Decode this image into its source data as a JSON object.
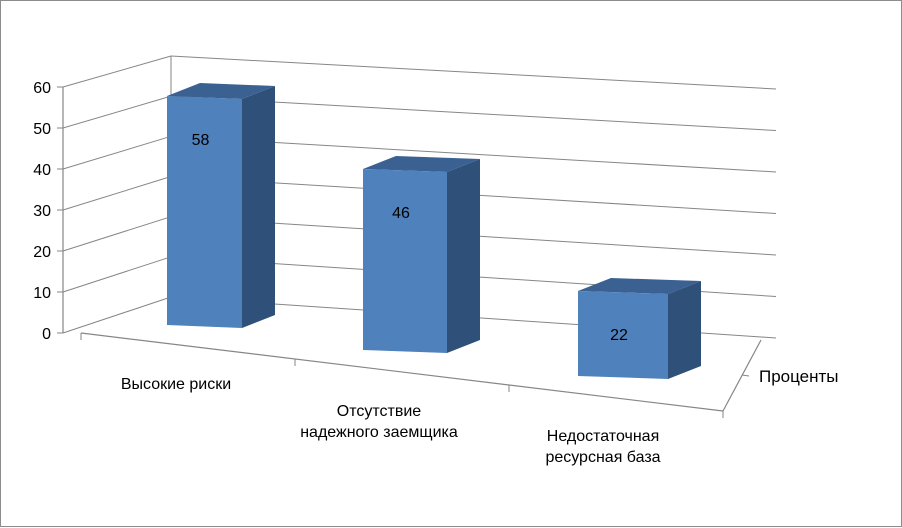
{
  "chart_data": {
    "type": "bar",
    "categories": [
      "Высокие риски",
      "Отсутствие надежного заемщика",
      "Недостаточная ресурсная база"
    ],
    "category_lines": [
      [
        "Высокие риски"
      ],
      [
        "Отсутствие",
        "надежного заемщика"
      ],
      [
        "Недостаточная",
        "ресурсная база"
      ]
    ],
    "series": [
      {
        "name": "Проценты",
        "values": [
          58,
          46,
          22
        ]
      }
    ],
    "ylim": [
      0,
      60
    ],
    "yticks": [
      0,
      10,
      20,
      30,
      40,
      50,
      60
    ],
    "grid": true,
    "data_labels": true,
    "colors": {
      "front": "#4f81bd",
      "side": "#2f5078",
      "top": "#3a6191",
      "grid": "#868686"
    }
  }
}
